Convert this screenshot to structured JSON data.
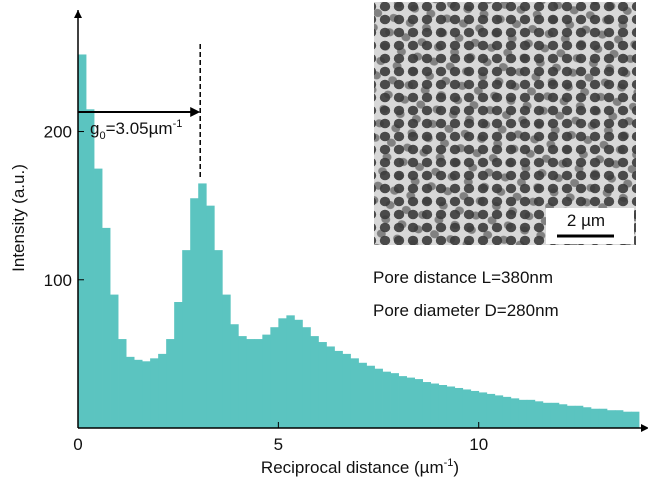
{
  "chart_data": {
    "type": "histogram",
    "xlabel": {
      "text": "Reciprocal distance (µm",
      "sup": "-1",
      "tail": ")"
    },
    "ylabel": "Intensity (a.u.)",
    "bins": [
      0,
      0.2,
      0.4,
      0.6,
      0.8,
      1.0,
      1.2,
      1.4,
      1.6,
      1.8,
      2.0,
      2.2,
      2.4,
      2.6,
      2.8,
      3.0,
      3.2,
      3.4,
      3.6,
      3.8,
      4.0,
      4.2,
      4.4,
      4.6,
      4.8,
      5.0,
      5.2,
      5.4,
      5.6,
      5.8,
      6.0,
      6.2,
      6.4,
      6.6,
      6.8,
      7.0,
      7.2,
      7.4,
      7.6,
      7.8,
      8.0,
      8.2,
      8.4,
      8.6,
      8.8,
      9.0,
      9.2,
      9.4,
      9.6,
      9.8,
      10.0,
      10.2,
      10.4,
      10.6,
      10.8,
      11.0,
      11.2,
      11.4,
      11.6,
      11.8,
      12.0,
      12.2,
      12.4,
      12.6,
      12.8,
      13.0,
      13.2,
      13.4,
      13.6,
      13.8,
      14.0
    ],
    "counts": [
      252,
      215,
      175,
      135,
      90,
      60,
      48,
      46,
      45,
      47,
      50,
      60,
      85,
      120,
      155,
      165,
      150,
      120,
      90,
      70,
      62,
      60,
      60,
      63,
      68,
      74,
      76,
      73,
      68,
      62,
      58,
      55,
      52,
      50,
      47,
      44,
      42,
      40,
      38,
      37,
      35,
      34,
      33,
      31,
      30,
      29,
      28,
      27,
      26,
      25,
      24,
      23,
      22,
      21,
      20,
      19,
      19,
      18,
      17,
      17,
      16,
      15,
      15,
      14,
      13,
      13,
      12,
      12,
      11,
      11
    ],
    "color": "#5bc4c0",
    "xlim": [
      0,
      14
    ],
    "ylim": [
      0,
      282
    ],
    "xticks": [
      0,
      5,
      10
    ],
    "yticks": [
      100,
      200
    ],
    "marker": {
      "x": 3.05,
      "label": [
        "g",
        "0",
        "=3.05µm",
        "-1"
      ]
    },
    "notes": [
      "Pore distance L=380nm",
      "Pore diameter D=280nm"
    ],
    "scale_bar": "2 µm"
  }
}
